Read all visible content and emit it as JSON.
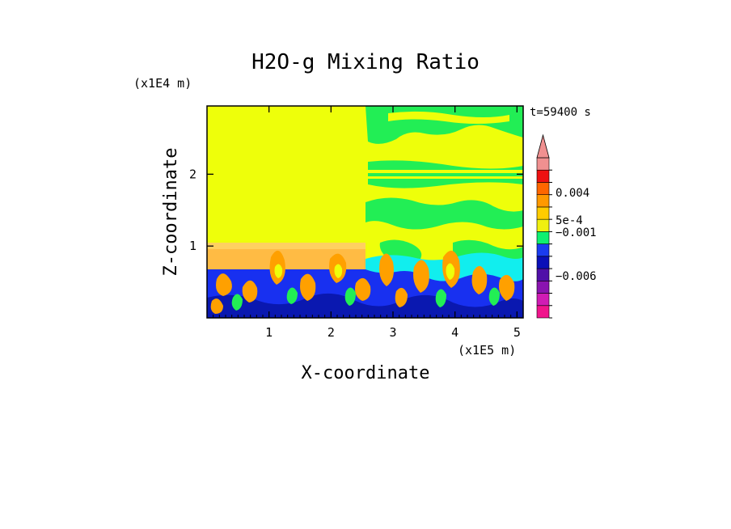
{
  "chart_data": {
    "type": "heatmap",
    "title": "H2O-g Mixing Ratio",
    "xlabel": "X-coordinate",
    "ylabel": "Z-coordinate",
    "x_scale_label": "(x1E5 m)",
    "y_scale_label": "(x1E4 m)",
    "time_label": "t=59400 s",
    "x_ticks": [
      "1",
      "2",
      "3",
      "4",
      "5"
    ],
    "y_ticks": [
      "1",
      "2"
    ],
    "xlim": [
      0,
      5.1
    ],
    "ylim": [
      0,
      2.95
    ],
    "colorbar_labels": [
      "0.004",
      "5e-4",
      "−0.001",
      "−0.006"
    ],
    "colorbar_colors": [
      "#f0148c",
      "#d01cb4",
      "#8a14b0",
      "#5010a8",
      "#0a10b8",
      "#1a3cf0",
      "#10f070",
      "#f0f010",
      "#ffcc00",
      "#ff9900",
      "#ff6600",
      "#ee1111",
      "#f09090"
    ],
    "field_colors": {
      "background": "#eeff0a",
      "green": "#22ee55",
      "cyan": "#11eeee",
      "orange": "#ffa000",
      "blue": "#1830f0",
      "navy": "#0a18b0",
      "peach": "#ffbb44"
    }
  }
}
